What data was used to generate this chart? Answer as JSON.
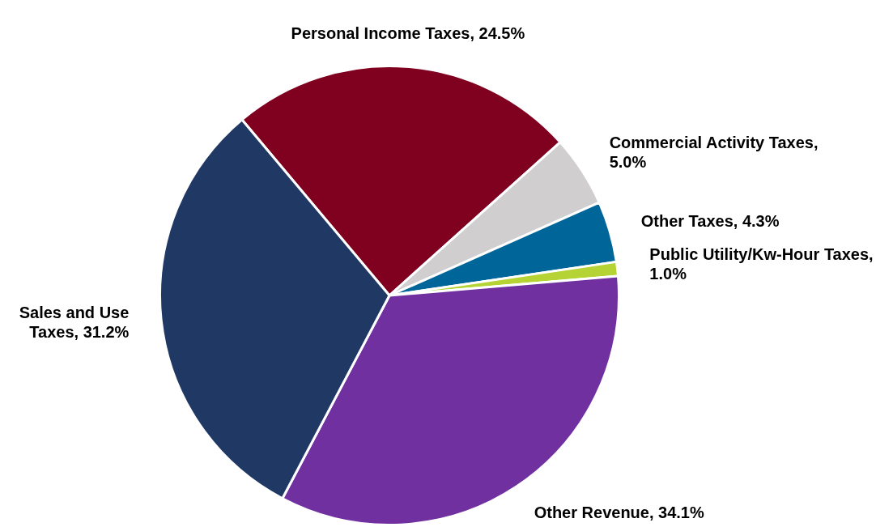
{
  "chart_data": {
    "type": "pie",
    "categories": [
      "Personal Income Taxes, 24.5%",
      "Commercial Activity Taxes, 5.0%",
      "Other Taxes, 4.3%",
      "Public Utility/Kw-Hour Taxes, 1.0%",
      "Other Revenue, 34.1%",
      "Sales and Use Taxes, 31.2%"
    ],
    "values": [
      24.5,
      5.0,
      4.3,
      1.0,
      34.1,
      31.2
    ],
    "colors": [
      "#800020",
      "#d0cece",
      "#00669a",
      "#b5d334",
      "#7030a0",
      "#203864"
    ],
    "legend": false
  }
}
